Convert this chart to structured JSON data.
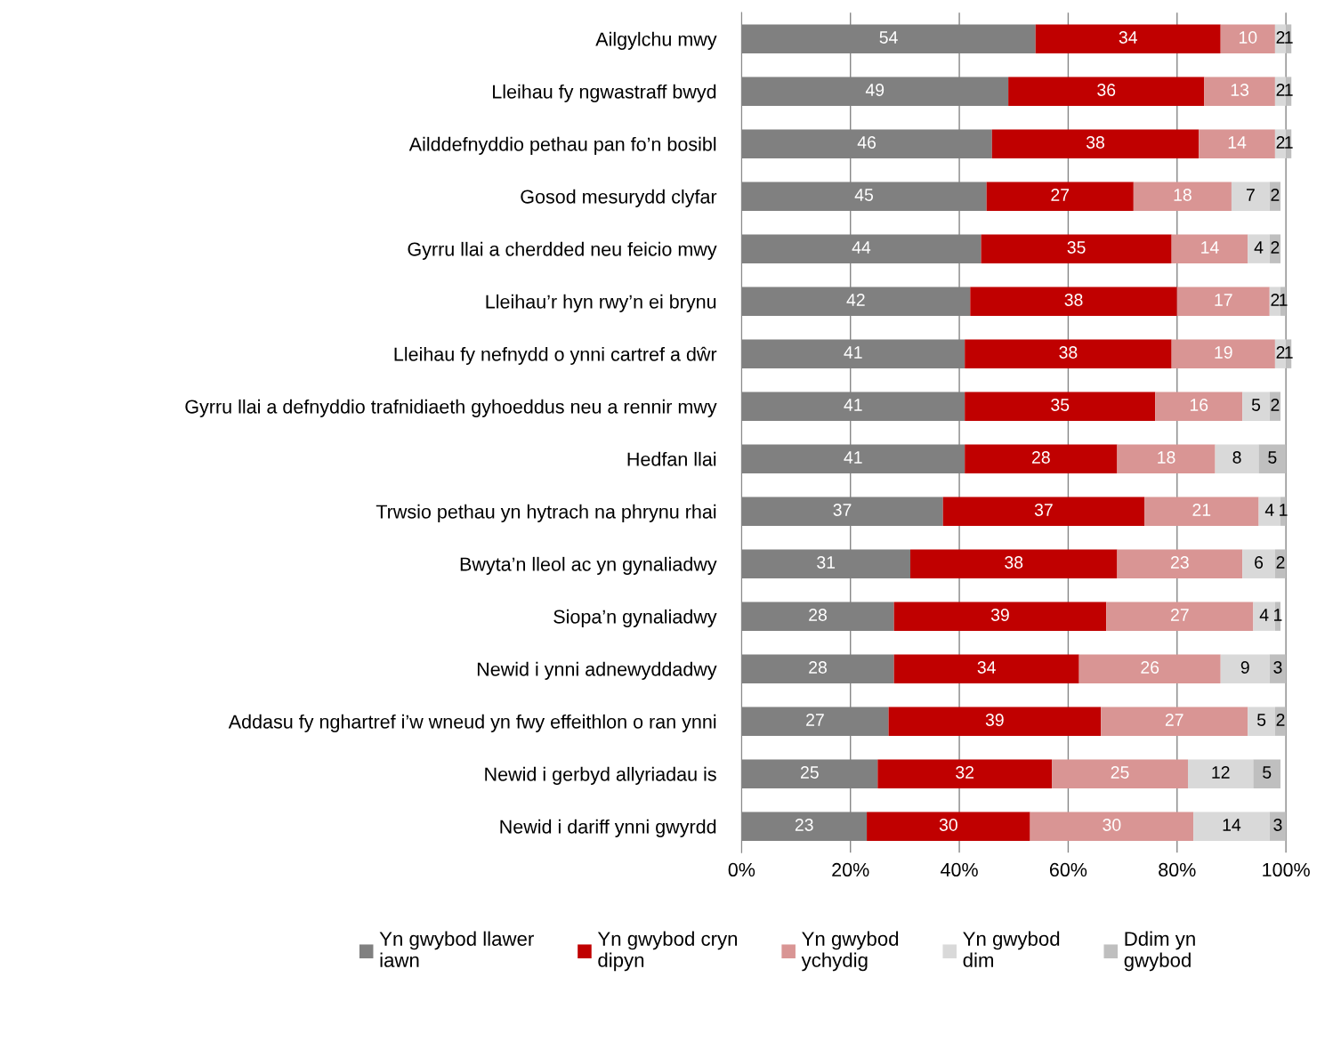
{
  "chart_data": {
    "type": "bar",
    "orientation": "horizontal",
    "stacked": true,
    "data_labels": true,
    "grid": "x",
    "legend": "bottom",
    "categories": [
      "Ailgylchu mwy",
      "Lleihau fy ngwastraff bwyd",
      "Ailddefnyddio pethau pan fo’n bosibl",
      "Gosod mesurydd clyfar",
      "Gyrru llai a cherdded neu feicio mwy",
      "Lleihau’r hyn rwy’n ei brynu",
      "Lleihau fy nefnydd o ynni cartref a dŵr",
      "Gyrru llai a defnyddio trafnidiaeth gyhoeddus neu a rennir mwy",
      "Hedfan llai",
      "Trwsio pethau yn hytrach na phrynu rhai",
      "Bwyta’n lleol ac yn gynaliadwy",
      "Siopa’n gynaliadwy",
      "Newid i ynni adnewyddadwy",
      "Addasu fy nghartref i’w wneud yn fwy effeithlon o ran ynni",
      "Newid i gerbyd allyriadau is",
      "Newid i dariff ynni gwyrdd"
    ],
    "series": [
      {
        "name": "Yn gwybod llawer iawn",
        "color": "#808080",
        "values": [
          54,
          49,
          46,
          45,
          44,
          42,
          41,
          41,
          41,
          37,
          31,
          28,
          28,
          27,
          25,
          23
        ]
      },
      {
        "name": "Yn gwybod cryn dipyn",
        "color": "#c00000",
        "values": [
          34,
          36,
          38,
          27,
          35,
          38,
          38,
          35,
          28,
          37,
          38,
          39,
          34,
          39,
          32,
          30
        ]
      },
      {
        "name": "Yn gwybod ychydig",
        "color": "#d99594",
        "values": [
          10,
          13,
          14,
          18,
          14,
          17,
          19,
          16,
          18,
          21,
          23,
          27,
          26,
          27,
          25,
          30
        ]
      },
      {
        "name": "Yn gwybod dim",
        "color": "#d9d9d9",
        "values": [
          2,
          2,
          2,
          7,
          4,
          2,
          2,
          5,
          8,
          4,
          6,
          4,
          9,
          5,
          12,
          14
        ]
      },
      {
        "name": "Ddim yn gwybod",
        "color": "#bfbfbf",
        "values": [
          1,
          1,
          1,
          2,
          2,
          1,
          1,
          2,
          5,
          1,
          2,
          1,
          3,
          2,
          5,
          3
        ]
      }
    ],
    "xlim": [
      0,
      101
    ],
    "xticks": [
      {
        "value": 0,
        "label": "0%"
      },
      {
        "value": 20,
        "label": "20%"
      },
      {
        "value": 40,
        "label": "40%"
      },
      {
        "value": 60,
        "label": "60%"
      },
      {
        "value": 80,
        "label": "80%"
      },
      {
        "value": 100,
        "label": "100%"
      }
    ]
  }
}
